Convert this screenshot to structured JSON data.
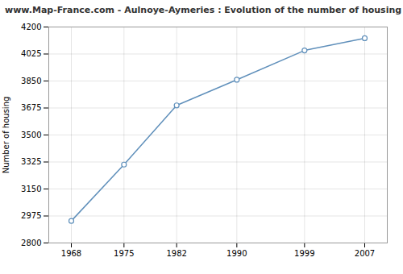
{
  "chart_data": {
    "type": "line",
    "title": "www.Map-France.com - Aulnoye-Aymeries : Evolution of the number of housing",
    "ylabel": "Number of housing",
    "x": [
      1968,
      1975,
      1982,
      1990,
      1999,
      2007
    ],
    "values": [
      2943,
      3308,
      3692,
      3858,
      4048,
      4127
    ],
    "color": "#6090bb",
    "marker": "circle",
    "xlim": [
      1965,
      2010
    ],
    "xticks": [
      1968,
      1975,
      1982,
      1990,
      1999,
      2007
    ],
    "ylim": [
      2800,
      4200
    ],
    "yticks": [
      2800,
      2975,
      3150,
      3325,
      3500,
      3675,
      3850,
      4025,
      4200
    ],
    "grid": true
  }
}
